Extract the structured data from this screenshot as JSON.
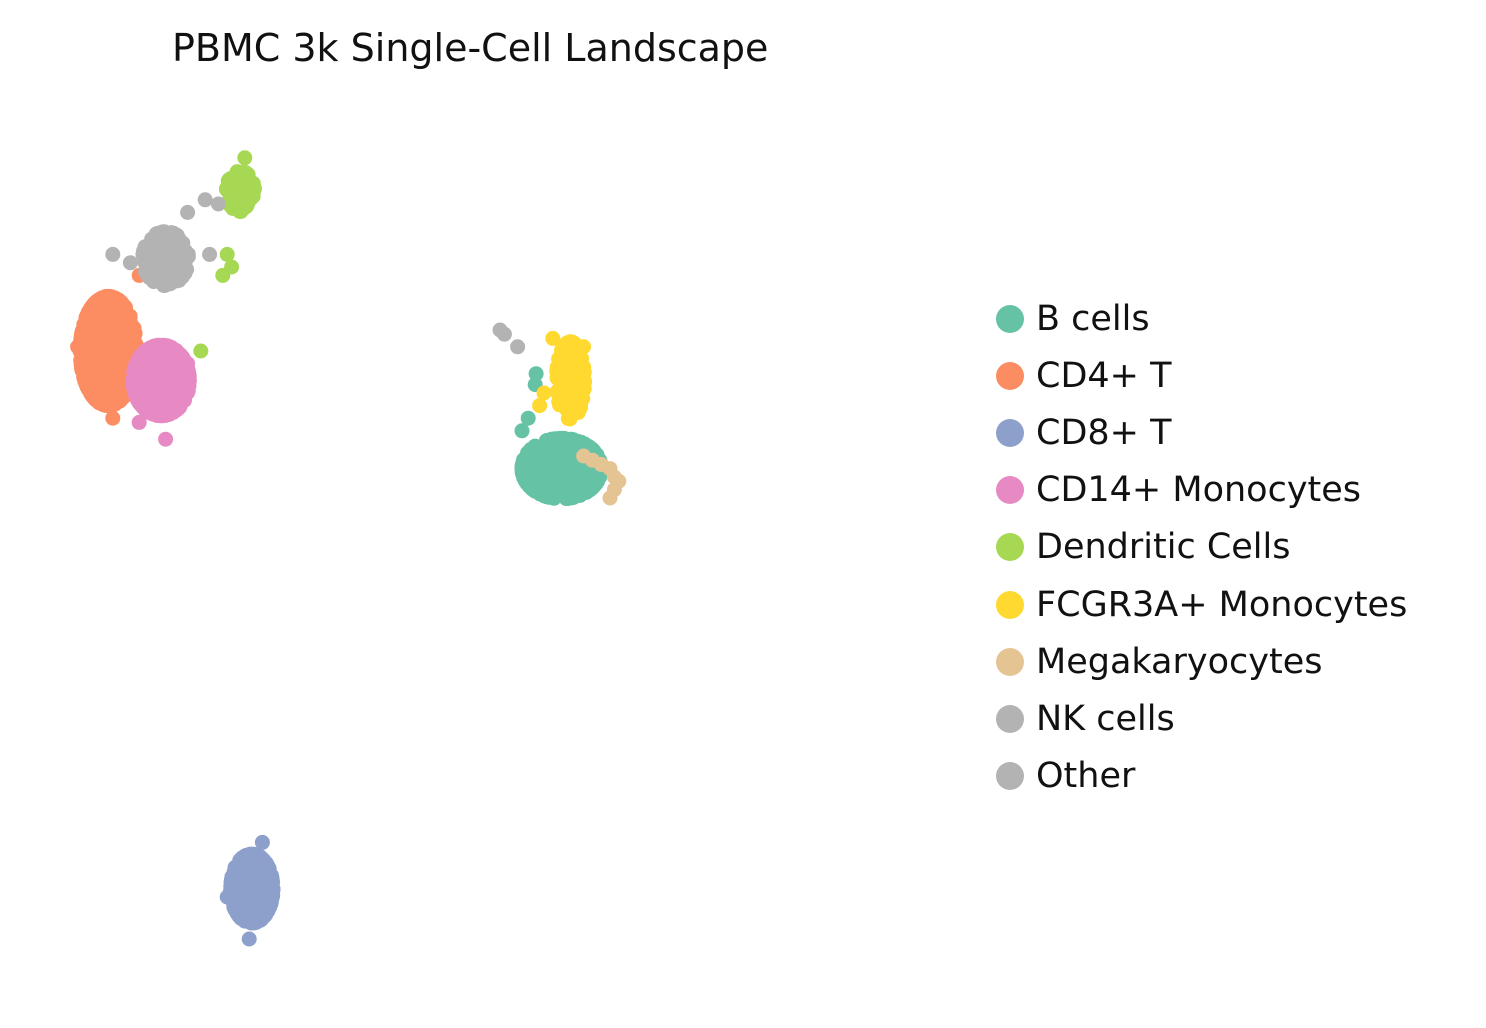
{
  "chart_data": {
    "type": "scatter",
    "title": "PBMC 3k Single-Cell Landscape",
    "xlabel": "",
    "ylabel": "",
    "axes_visible": false,
    "grid": false,
    "legend_position": "right",
    "xlim": [
      0,
      100
    ],
    "ylim": [
      0,
      100
    ],
    "series": [
      {
        "name": "B cells",
        "color": "#66c2a5",
        "clusters": [
          {
            "center": [
              57.0,
              58.5
            ],
            "spread": [
              4.5,
              3.6
            ],
            "n": 420
          }
        ],
        "points": [
          [
            54.1,
            69.8
          ],
          [
            54.0,
            68.5
          ],
          [
            52.5,
            63.0
          ],
          [
            53.2,
            64.5
          ],
          [
            58.5,
            59.5
          ]
        ]
      },
      {
        "name": "CD4+ T",
        "color": "#fc8d62",
        "clusters": [
          {
            "center": [
              5.5,
              72.5
            ],
            "spread": [
              3.2,
              6.5
            ],
            "n": 500
          }
        ],
        "points": [
          [
            9.0,
            81.5
          ],
          [
            2.0,
            73.0
          ],
          [
            6.0,
            64.5
          ],
          [
            10.5,
            66.0
          ]
        ]
      },
      {
        "name": "CD8+ T",
        "color": "#8da0cb",
        "clusters": [
          {
            "center": [
              21.8,
              8.5
            ],
            "spread": [
              2.4,
              4.1
            ],
            "n": 340
          }
        ],
        "points": [
          [
            23.0,
            14.0
          ],
          [
            19.0,
            7.5
          ],
          [
            21.5,
            2.5
          ],
          [
            10.0,
            66.0
          ]
        ]
      },
      {
        "name": "CD14+ Monocytes",
        "color": "#e78ac3",
        "clusters": [
          {
            "center": [
              11.5,
              69.0
            ],
            "spread": [
              3.2,
              4.2
            ],
            "n": 380
          }
        ],
        "points": [
          [
            14.5,
            71.0
          ],
          [
            9.0,
            64.0
          ],
          [
            12.0,
            62.0
          ]
        ]
      },
      {
        "name": "Dendritic Cells",
        "color": "#a6d854",
        "clusters": [
          {
            "center": [
              20.5,
              91.5
            ],
            "spread": [
              1.6,
              2.4
            ],
            "n": 90
          }
        ],
        "points": [
          [
            16.0,
            72.5
          ],
          [
            18.5,
            81.5
          ],
          [
            19.5,
            82.5
          ],
          [
            21.0,
            95.5
          ],
          [
            19.0,
            84.0
          ]
        ]
      },
      {
        "name": "FCGR3A+ Monocytes",
        "color": "#ffd92f",
        "clusters": [
          {
            "center": [
              58.0,
              69.0
            ],
            "spread": [
              1.6,
              4.6
            ],
            "n": 170
          }
        ],
        "points": [
          [
            55.0,
            67.5
          ],
          [
            56.0,
            74.0
          ],
          [
            59.5,
            73.0
          ],
          [
            54.5,
            66.0
          ]
        ]
      },
      {
        "name": "Megakaryocytes",
        "color": "#e5c494",
        "clusters": [],
        "points": [
          [
            59.5,
            60.0
          ],
          [
            60.5,
            59.5
          ],
          [
            61.5,
            59.0
          ],
          [
            62.5,
            58.5
          ],
          [
            63.0,
            57.5
          ],
          [
            63.5,
            57.0
          ],
          [
            63.0,
            56.0
          ],
          [
            62.5,
            55.0
          ]
        ]
      },
      {
        "name": "NK cells",
        "color": "#b3b3b3",
        "clusters": [
          {
            "center": [
              12.0,
              83.5
            ],
            "spread": [
              2.6,
              3.2
            ],
            "n": 160
          }
        ],
        "points": [
          [
            14.5,
            89.0
          ],
          [
            16.5,
            90.5
          ],
          [
            18.0,
            90.0
          ],
          [
            8.0,
            83.0
          ],
          [
            6.0,
            84.0
          ],
          [
            17.0,
            84.0
          ]
        ]
      },
      {
        "name": "Other",
        "color": "#b3b3b3",
        "clusters": [],
        "points": [
          [
            50.0,
            75.0
          ],
          [
            50.5,
            74.5
          ],
          [
            52.0,
            73.0
          ]
        ]
      }
    ]
  }
}
